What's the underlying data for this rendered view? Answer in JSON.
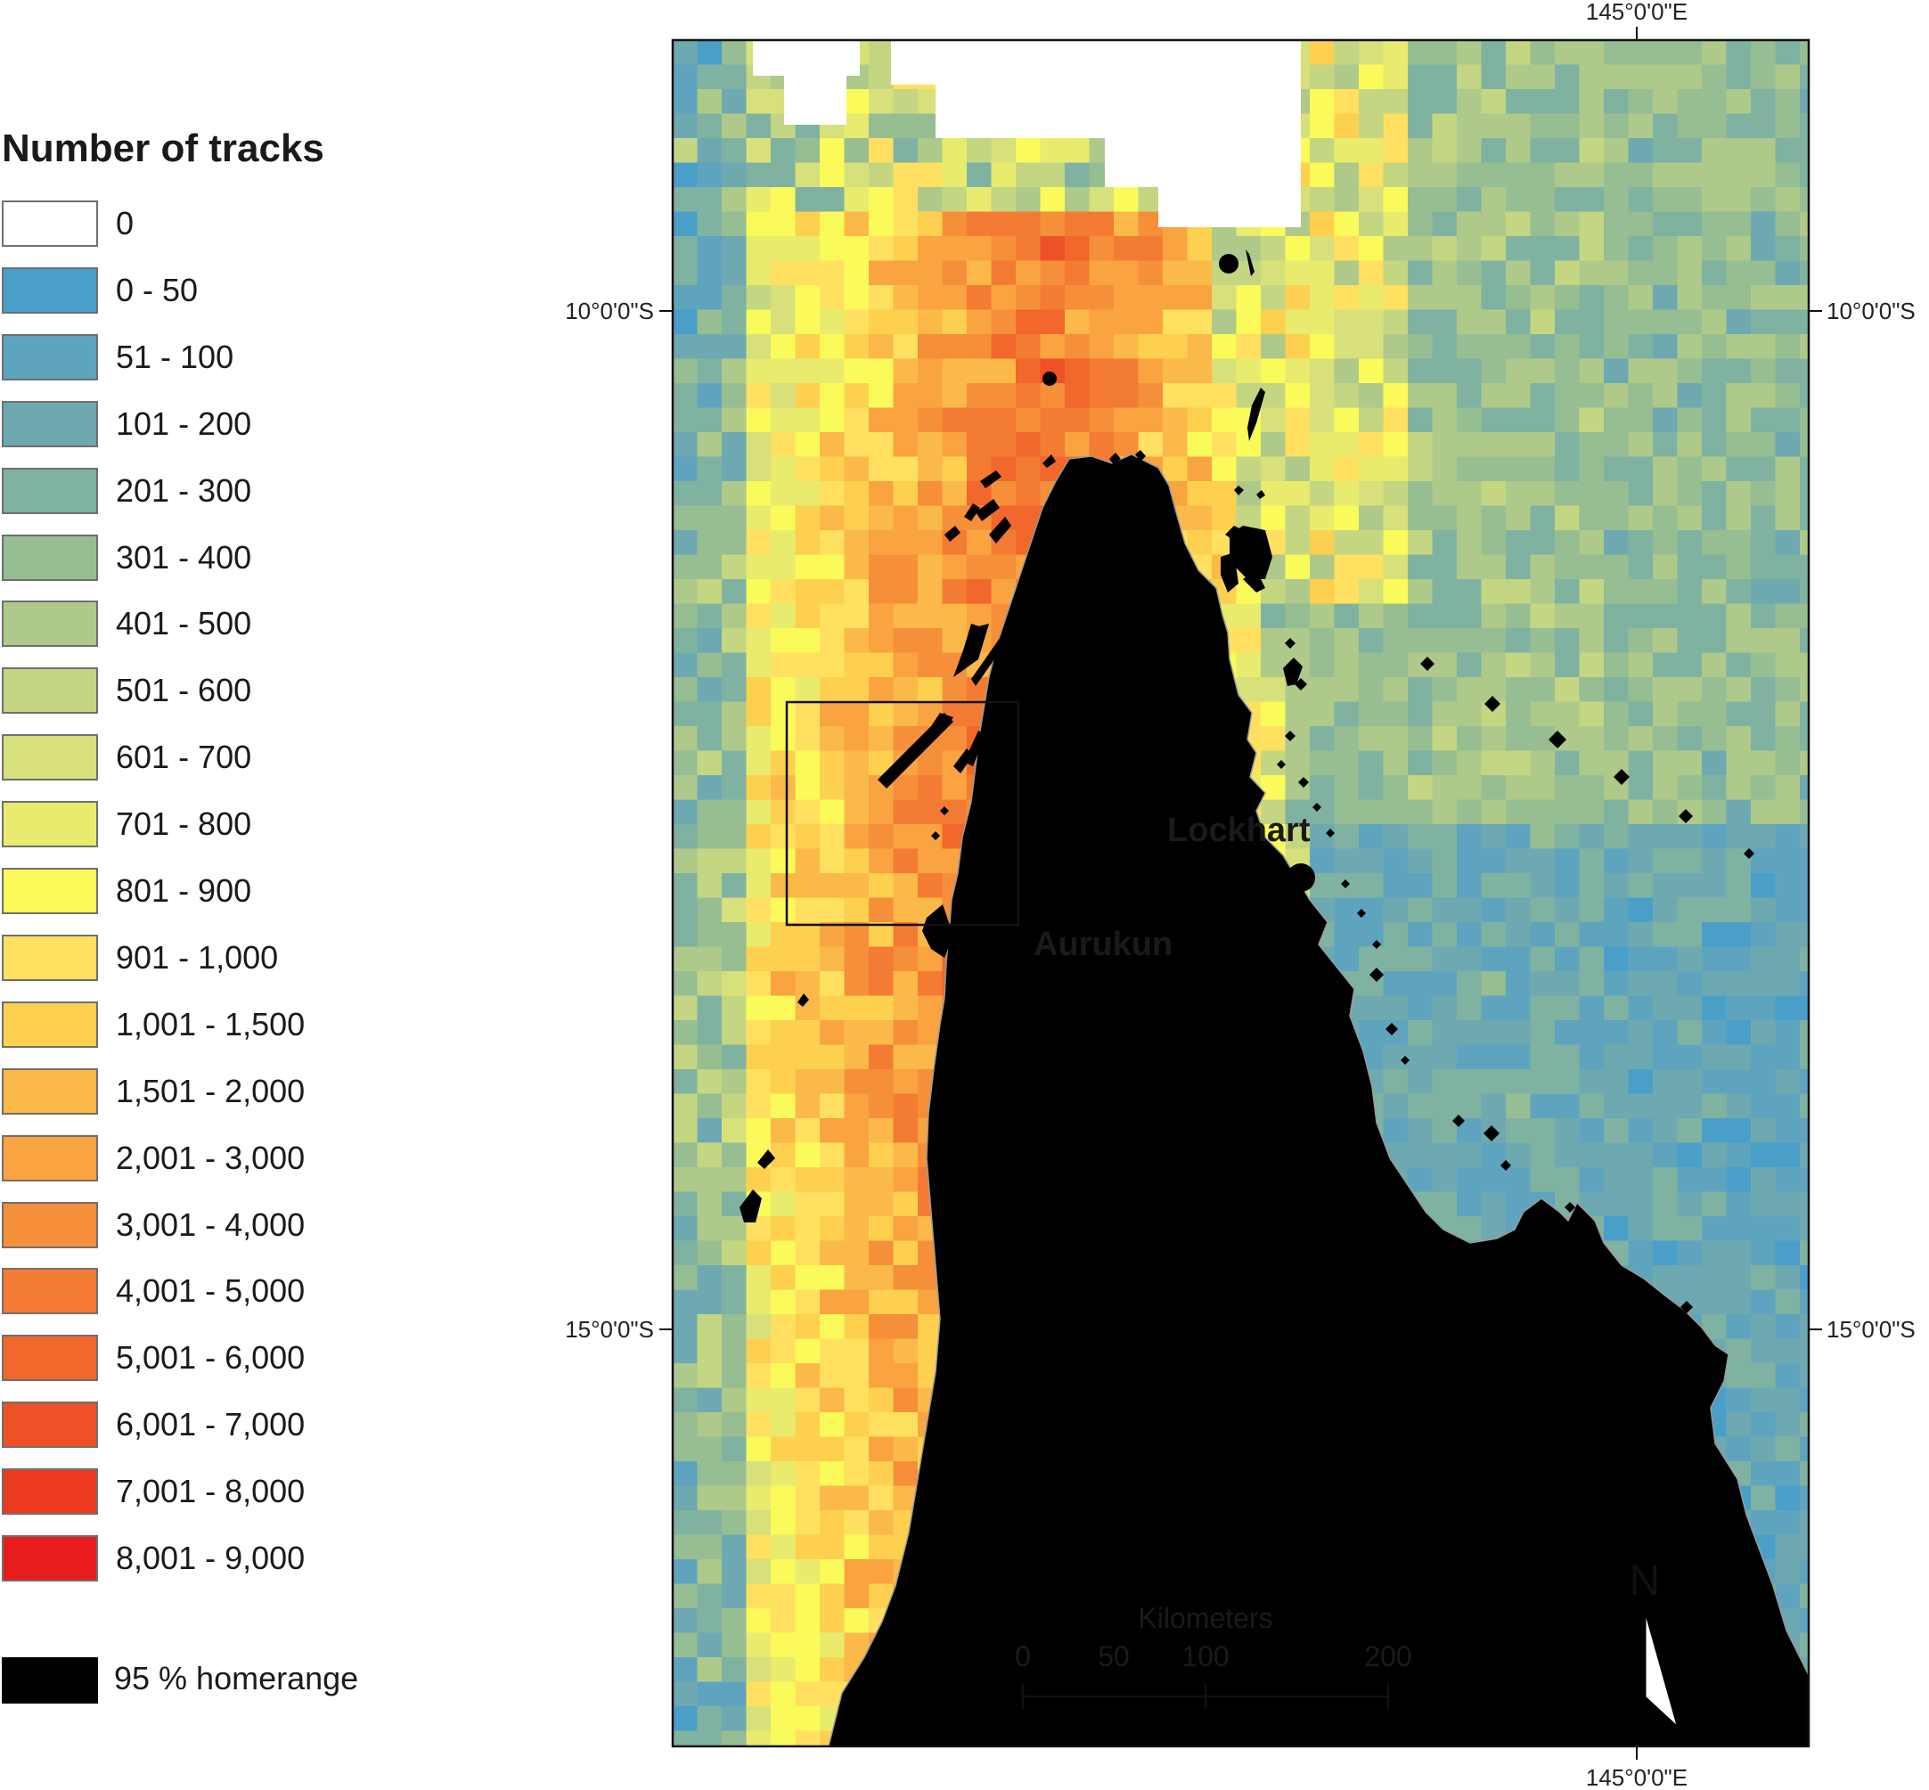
{
  "legend": {
    "title": "Number of tracks",
    "classes": [
      {
        "label": "0",
        "color": "#ffffff"
      },
      {
        "label": "0 - 50",
        "color": "#4a9fc9"
      },
      {
        "label": "51 - 100",
        "color": "#5fa4be"
      },
      {
        "label": "101 - 200",
        "color": "#6ea9b2"
      },
      {
        "label": "201 - 300",
        "color": "#80b2a2"
      },
      {
        "label": "301 - 400",
        "color": "#97bd93"
      },
      {
        "label": "401 - 500",
        "color": "#aec98a"
      },
      {
        "label": "501 - 600",
        "color": "#c4d682"
      },
      {
        "label": "601 - 700",
        "color": "#d7e07a"
      },
      {
        "label": "701 - 800",
        "color": "#e8eb6d"
      },
      {
        "label": "801 - 900",
        "color": "#fafa5a"
      },
      {
        "label": "901 - 1,000",
        "color": "#ffe060"
      },
      {
        "label": "1,001 - 1,500",
        "color": "#fdd050"
      },
      {
        "label": "1,501 - 2,000",
        "color": "#fbb94a"
      },
      {
        "label": "2,001 - 3,000",
        "color": "#f9a441"
      },
      {
        "label": "3,001 - 4,000",
        "color": "#f68f3a"
      },
      {
        "label": "4,001 - 5,000",
        "color": "#f47b33"
      },
      {
        "label": "5,001 - 6,000",
        "color": "#f1672c"
      },
      {
        "label": "6,001 - 7,000",
        "color": "#ee5125"
      },
      {
        "label": "7,001 - 8,000",
        "color": "#eb3a20"
      },
      {
        "label": "8,001 - 9,000",
        "color": "#e81c1c"
      }
    ],
    "homerange_label": "95 % homerange"
  },
  "map": {
    "lon_label_top": "145°0'0\"E",
    "lon_label_bottom": "145°0'0\"E",
    "lat_10_left": "10°0'0\"S",
    "lat_10_right": "10°0'0\"S",
    "lat_15_left": "15°0'0\"S",
    "lat_15_right": "15°0'0\"S",
    "places": [
      {
        "name": "Lockhart"
      },
      {
        "name": "Aurukun"
      }
    ],
    "land_color": "#e8e8e8",
    "scalebar": {
      "title": "Kilometers",
      "ticks": [
        "0",
        "50",
        "100",
        "200"
      ]
    },
    "north_label": "N"
  }
}
